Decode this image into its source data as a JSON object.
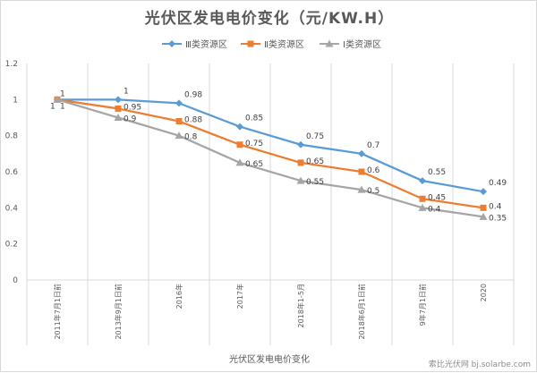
{
  "chart_data": {
    "type": "line",
    "title": "光伏区发电电价变化（元/KW.H）",
    "xlabel": "光伏区发电电价变化",
    "ylabel": "",
    "ylim": [
      0,
      1.2
    ],
    "yticks": [
      "0",
      "0.2",
      "0.4",
      "0.6",
      "0.8",
      "1",
      "1.2"
    ],
    "ytick_values": [
      0,
      0.2,
      0.4,
      0.6,
      0.8,
      1,
      1.2
    ],
    "categories": [
      "2011年7月1日前",
      "2013年9月1日前",
      "2016年",
      "2017年",
      "2018年1-5月",
      "2018年6月1日前",
      "9年7月1日前",
      "2020"
    ],
    "grid": "vertical",
    "legend_position": "top",
    "series": [
      {
        "name": "Ⅲ类资源区",
        "color": "#5b9bd5",
        "marker": "diamond",
        "values": [
          1,
          1,
          0.98,
          0.85,
          0.75,
          0.7,
          0.55,
          0.49
        ],
        "labels": [
          "1",
          "1",
          "0.98",
          "0.85",
          "0.75",
          "0.7",
          "0.55",
          "0.49"
        ]
      },
      {
        "name": "Ⅱ类资源区",
        "color": "#ed7d31",
        "marker": "square",
        "values": [
          1,
          0.95,
          0.88,
          0.75,
          0.65,
          0.6,
          0.45,
          0.4
        ],
        "labels": [
          "1",
          "0.95",
          "0.88",
          "0.75",
          "0.65",
          "0.6",
          "0.45",
          "0.4"
        ]
      },
      {
        "name": "Ⅰ类资源区",
        "color": "#a5a5a5",
        "marker": "triangle",
        "values": [
          1,
          0.9,
          0.8,
          0.65,
          0.55,
          0.5,
          0.4,
          0.35
        ],
        "labels": [
          "1",
          "0.9",
          "0.8",
          "0.65",
          "0.55",
          "0.5",
          "0.4",
          "0.35"
        ]
      }
    ]
  },
  "watermark": "索比光伏网 bj.solarbe.com"
}
